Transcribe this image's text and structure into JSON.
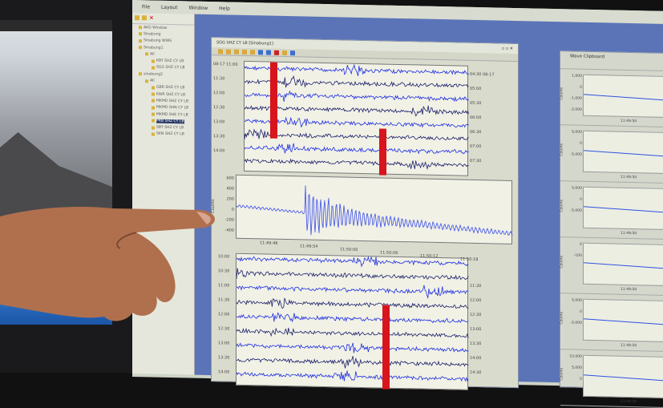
{
  "menu": [
    "File",
    "Layout",
    "Window",
    "Help"
  ],
  "sidebar": {
    "items": [
      {
        "label": "AKG Window",
        "level": 0
      },
      {
        "label": "Sinabung",
        "level": 0
      },
      {
        "label": "Sinabung WWS",
        "level": 0
      },
      {
        "label": "Sinabung1",
        "level": 0
      },
      {
        "label": "All",
        "level": 1
      },
      {
        "label": "KBY SHZ CY LB",
        "level": 2
      },
      {
        "label": "SGG SHZ CY LB",
        "level": 2
      },
      {
        "label": "sinabung2",
        "level": 0
      },
      {
        "label": "All",
        "level": 1
      },
      {
        "label": "GBR SHZ CY LB",
        "level": 2
      },
      {
        "label": "KWR SHZ CY LB",
        "level": 2
      },
      {
        "label": "MKMD SHZ CY LB",
        "level": 2
      },
      {
        "label": "MKMD SHN CY LB",
        "level": 2
      },
      {
        "label": "MKMD SHE CY LB",
        "level": 2
      },
      {
        "label": "PRB SHZ CY LB",
        "level": 2,
        "selected": true
      },
      {
        "label": "SBY SHZ CY LB",
        "level": 2
      },
      {
        "label": "SKN SHZ CY LB",
        "level": 2
      }
    ]
  },
  "helicorder": {
    "title": "SGG SHZ CY LB [Sinabung1]",
    "top_left_labels": [
      "08-17 11:00",
      "11:30",
      "12:00",
      "12:30",
      "13:00",
      "13:30",
      "14:00"
    ],
    "top_right_labels": [
      "04:30 08-17",
      "05:00",
      "05:30",
      "06:00",
      "06:30",
      "07:00",
      "07:30"
    ],
    "bottom_left_labels": [
      "10:00",
      "10:30",
      "11:00",
      "11:30",
      "12:00",
      "12:30",
      "13:00",
      "13:30",
      "14:00"
    ],
    "bottom_right_labels": [
      "11:30",
      "12:00",
      "12:30",
      "13:00",
      "13:30",
      "14:00",
      "14:30"
    ]
  },
  "zoom_wave": {
    "ylabel": "Counts",
    "yticks": [
      "600",
      "400",
      "200",
      "0",
      "-200",
      "-400"
    ],
    "xticks": [
      "11:49:48",
      "11:49:54",
      "11:50:00",
      "11:50:06",
      "11:50:12",
      "11:50:18"
    ]
  },
  "clipboard": {
    "title": "Wave Clipboard",
    "panels": [
      {
        "ylabel": "Counts",
        "yticks": [
          "1,000",
          "0",
          "-1,000",
          "-2,000"
        ],
        "time": "11:49:50"
      },
      {
        "ylabel": "Counts",
        "yticks": [
          "5,000",
          "0",
          "-5,000"
        ],
        "time": "11:49:50"
      },
      {
        "ylabel": "Counts",
        "yticks": [
          "5,000",
          "0",
          "-5,000"
        ],
        "time": "11:49:50"
      },
      {
        "ylabel": "Counts",
        "yticks": [
          "0",
          "-100"
        ],
        "time": "11:49:50"
      },
      {
        "ylabel": "Counts",
        "yticks": [
          "5,000",
          "0",
          "-5,000"
        ],
        "time": "11:49:50"
      },
      {
        "ylabel": "Counts",
        "yticks": [
          "10,000",
          "5,000",
          "0"
        ],
        "time": "11:49:50"
      }
    ]
  },
  "colors": {
    "trace_blue": "#1f2fe0",
    "trace_dark": "#1a1f6a",
    "event_marker": "#d8141c",
    "desktop": "#5b74b8"
  }
}
